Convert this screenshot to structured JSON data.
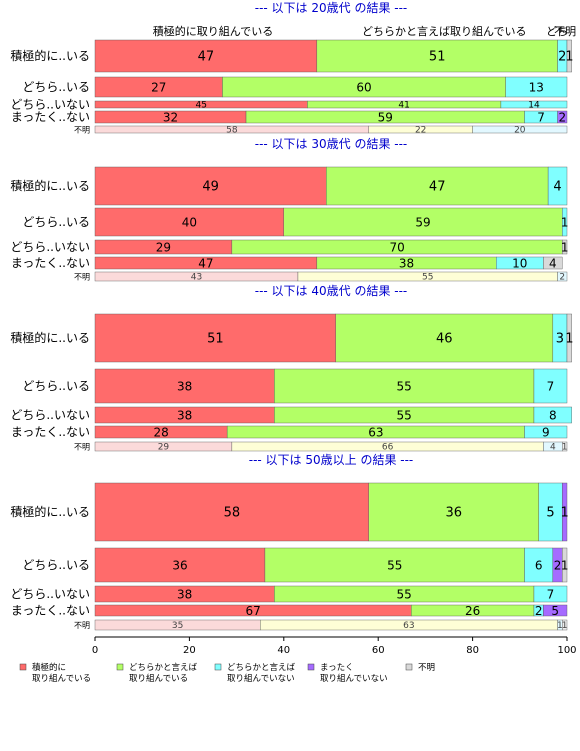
{
  "chart_data": {
    "type": "bar",
    "orientation": "horizontal",
    "stacked": "percent",
    "xlim": [
      0,
      100
    ],
    "xticks": [
      0,
      20,
      40,
      60,
      80,
      100
    ],
    "top_labels": [
      {
        "text": "積極的に取り組んでいる",
        "at": 25
      },
      {
        "text": "どちらかと言えば取り組んでいる",
        "at": 74
      },
      {
        "text": "どち",
        "at": 97.9
      },
      {
        "text": "不明",
        "at": 99.6
      }
    ],
    "legend": {
      "position": "bottom",
      "items": [
        {
          "label": "積極的に\n取り組んでいる",
          "color": "#ff6b6b"
        },
        {
          "label": "どちらかと言えば\n取り組んでいる",
          "color": "#b3ff66"
        },
        {
          "label": "どちらかと言えば\n取り組んでいない",
          "color": "#80ffff"
        },
        {
          "label": "まったく\n取り組んでいない",
          "color": "#a56bff"
        },
        {
          "label": "不明",
          "color": "#d9d9d9"
        }
      ]
    },
    "panels": [
      {
        "title": "--- 以下は 20歳代 の結果 ---",
        "rows": [
          {
            "label": "積極的に..いる",
            "size": "big",
            "segments": [
              47,
              51,
              2,
              0,
              1
            ],
            "labels": [
              "47",
              "51",
              "2",
              "",
              "1"
            ]
          },
          {
            "label": "どちら..いる",
            "size": "medium",
            "segments": [
              27,
              60,
              13,
              0,
              0
            ],
            "labels": [
              "27",
              "60",
              "13",
              "",
              ""
            ]
          },
          {
            "label": "どちら..いない",
            "size": "thin",
            "segments": [
              45,
              41,
              14,
              0,
              0
            ],
            "labels": [
              "45",
              "41",
              "14",
              "",
              ""
            ]
          },
          {
            "label": "まったく..ない",
            "size": "small",
            "segments": [
              32,
              59,
              7,
              2,
              0
            ],
            "labels": [
              "32",
              "59",
              "7",
              "2",
              ""
            ]
          },
          {
            "label": "不明",
            "size": "tiny",
            "faded": true,
            "segments": [
              58,
              22,
              20,
              0,
              0
            ],
            "labels": [
              "58",
              "22",
              "20",
              "",
              ""
            ]
          }
        ]
      },
      {
        "title": "--- 以下は 30歳代 の結果 ---",
        "rows": [
          {
            "label": "積極的に..いる",
            "size": "big",
            "segments": [
              49,
              47,
              4,
              0,
              0
            ],
            "labels": [
              "49",
              "47",
              "4",
              "",
              ""
            ]
          },
          {
            "label": "どちら..いる",
            "size": "medium",
            "segments": [
              40,
              59,
              1,
              0,
              0
            ],
            "labels": [
              "40",
              "59",
              "1",
              "",
              ""
            ]
          },
          {
            "label": "どちら..いない",
            "size": "small",
            "segments": [
              29,
              70,
              0,
              0,
              1
            ],
            "labels": [
              "29",
              "70",
              "",
              "",
              "1"
            ]
          },
          {
            "label": "まったく..ない",
            "size": "small",
            "segments": [
              47,
              38,
              10,
              0,
              4
            ],
            "labels": [
              "47",
              "38",
              "10",
              "",
              "4"
            ]
          },
          {
            "label": "不明",
            "size": "tiny",
            "faded": true,
            "segments": [
              43,
              55,
              2,
              0,
              0
            ],
            "labels": [
              "43",
              "55",
              "2",
              "",
              ""
            ]
          }
        ]
      },
      {
        "title": "--- 以下は 40歳代 の結果 ---",
        "rows": [
          {
            "label": "積極的に..いる",
            "size": "big",
            "segments": [
              51,
              46,
              3,
              0,
              1
            ],
            "labels": [
              "51",
              "46",
              "3",
              "",
              "1"
            ]
          },
          {
            "label": "どちら..いる",
            "size": "medium",
            "segments": [
              38,
              55,
              7,
              0,
              0
            ],
            "labels": [
              "38",
              "55",
              "7",
              "",
              ""
            ]
          },
          {
            "label": "どちら..いない",
            "size": "small",
            "segments": [
              38,
              55,
              8,
              0,
              0
            ],
            "labels": [
              "38",
              "55",
              "8",
              "",
              ""
            ]
          },
          {
            "label": "まったく..ない",
            "size": "small",
            "segments": [
              28,
              63,
              9,
              0,
              0
            ],
            "labels": [
              "28",
              "63",
              "9",
              "",
              ""
            ]
          },
          {
            "label": "不明",
            "size": "tiny",
            "faded": true,
            "segments": [
              29,
              66,
              4,
              0,
              1
            ],
            "labels": [
              "29",
              "66",
              "4",
              "",
              "1"
            ]
          }
        ]
      },
      {
        "title": "--- 以下は 50歳以上 の結果 ---",
        "rows": [
          {
            "label": "積極的に..いる",
            "size": "big",
            "segments": [
              58,
              36,
              5,
              1,
              0
            ],
            "labels": [
              "58",
              "36",
              "5",
              "1",
              ""
            ]
          },
          {
            "label": "どちら..いる",
            "size": "medium",
            "segments": [
              36,
              55,
              6,
              2,
              1
            ],
            "labels": [
              "36",
              "55",
              "6",
              "2",
              "1"
            ]
          },
          {
            "label": "どちら..いない",
            "size": "small",
            "segments": [
              38,
              55,
              7,
              0,
              0
            ],
            "labels": [
              "38",
              "55",
              "7",
              "",
              ""
            ]
          },
          {
            "label": "まったく..ない",
            "size": "small",
            "segments": [
              67,
              26,
              2,
              5,
              0
            ],
            "labels": [
              "67",
              "26",
              "2",
              "5",
              ""
            ]
          },
          {
            "label": "不明",
            "size": "tiny",
            "faded": true,
            "segments": [
              35,
              63,
              1,
              0,
              1
            ],
            "labels": [
              "35",
              "63",
              "1",
              "",
              "1"
            ]
          }
        ]
      }
    ]
  }
}
